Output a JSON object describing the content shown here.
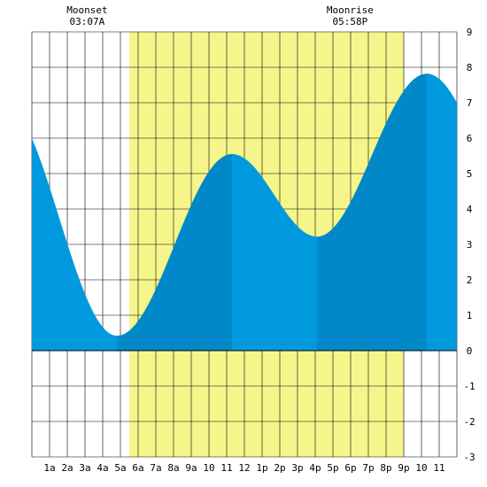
{
  "chart_data": {
    "type": "area",
    "title": "",
    "xlabel": "",
    "ylabel": "",
    "xlim": [
      0,
      24
    ],
    "ylim": [
      -3,
      9
    ],
    "grid": true,
    "x_tick_labels": [
      "1a",
      "2a",
      "3a",
      "4a",
      "5a",
      "6a",
      "7a",
      "8a",
      "9a",
      "10",
      "11",
      "12",
      "1p",
      "2p",
      "3p",
      "4p",
      "5p",
      "6p",
      "7p",
      "8p",
      "9p",
      "10",
      "11"
    ],
    "y_ticks": [
      -3,
      -2,
      -1,
      0,
      1,
      2,
      3,
      4,
      5,
      6,
      7,
      8,
      9
    ],
    "y_tick_labels": [
      "-3",
      "-2",
      "-1",
      "0",
      "1",
      "2",
      "3",
      "4",
      "5",
      "6",
      "7",
      "8",
      "9"
    ],
    "daylight": {
      "start_hour": 5.5,
      "end_hour": 21.0
    },
    "tide_extrema": [
      {
        "hour": 4.8,
        "height": 0.42,
        "kind": "low"
      },
      {
        "hour": 11.3,
        "height": 5.55,
        "kind": "high"
      },
      {
        "hour": 16.1,
        "height": 3.22,
        "kind": "low"
      },
      {
        "hour": 22.3,
        "height": 7.82,
        "kind": "high"
      }
    ],
    "start": {
      "hour": 0,
      "height": 6.0
    },
    "end": {
      "hour": 24,
      "height": 7.0
    },
    "shade_bands": [
      {
        "from": 0,
        "to": 4.8,
        "color": "#0099dd"
      },
      {
        "from": 4.8,
        "to": 11.3,
        "color": "#0088c8"
      },
      {
        "from": 11.3,
        "to": 16.1,
        "color": "#0099dd"
      },
      {
        "from": 16.1,
        "to": 22.3,
        "color": "#0088c8"
      },
      {
        "from": 22.3,
        "to": 24,
        "color": "#0099dd"
      }
    ],
    "annotations": [
      {
        "title": "Moonset",
        "time": "03:07A",
        "hour": 3.12
      },
      {
        "title": "Moonrise",
        "time": "05:58P",
        "hour": 17.97
      }
    ],
    "colors": {
      "daylight": "#f5f58c",
      "grid": "#000000"
    }
  }
}
